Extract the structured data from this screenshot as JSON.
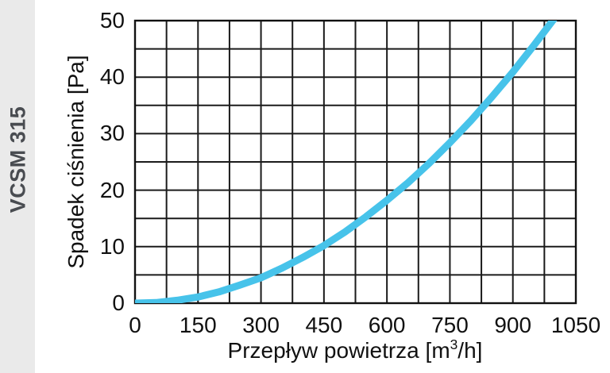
{
  "sidebar": {
    "label": "VCSM 315"
  },
  "chart_data": {
    "type": "line",
    "title": "",
    "xlabel": "Przepływ powietrza [m³/h]",
    "xlabel_parts": {
      "pre": "Przepływ powietrza [m",
      "sup": "3",
      "post": "/h]"
    },
    "ylabel": "Spadek ciśnienia [Pa]",
    "xlim": [
      0,
      1050
    ],
    "ylim": [
      0,
      50
    ],
    "xticks": [
      0,
      150,
      300,
      450,
      600,
      750,
      900,
      1050
    ],
    "yticks": [
      0,
      10,
      20,
      30,
      40,
      50
    ],
    "x_grid_step": 75,
    "y_grid_step": 5,
    "grid": true,
    "legend": false,
    "series": [
      {
        "name": "VCSM 315",
        "color": "#47c3ea",
        "x": [
          0,
          50,
          100,
          150,
          200,
          250,
          300,
          350,
          400,
          450,
          500,
          550,
          600,
          650,
          700,
          750,
          800,
          850,
          900,
          950,
          1000
        ],
        "y": [
          0,
          0.1,
          0.5,
          1.1,
          2.0,
          3.2,
          4.5,
          6.2,
          8.1,
          10.2,
          12.6,
          15.3,
          18.2,
          21.3,
          24.7,
          28.4,
          32.3,
          36.5,
          40.9,
          45.6,
          50.5
        ]
      }
    ]
  },
  "colors": {
    "curve": "#47c3ea",
    "grid_line": "#1b1b1b",
    "plot_border": "#111111",
    "text": "#111111",
    "sidebar_bg": "#eaeaea",
    "sidebar_text": "#494c51"
  }
}
